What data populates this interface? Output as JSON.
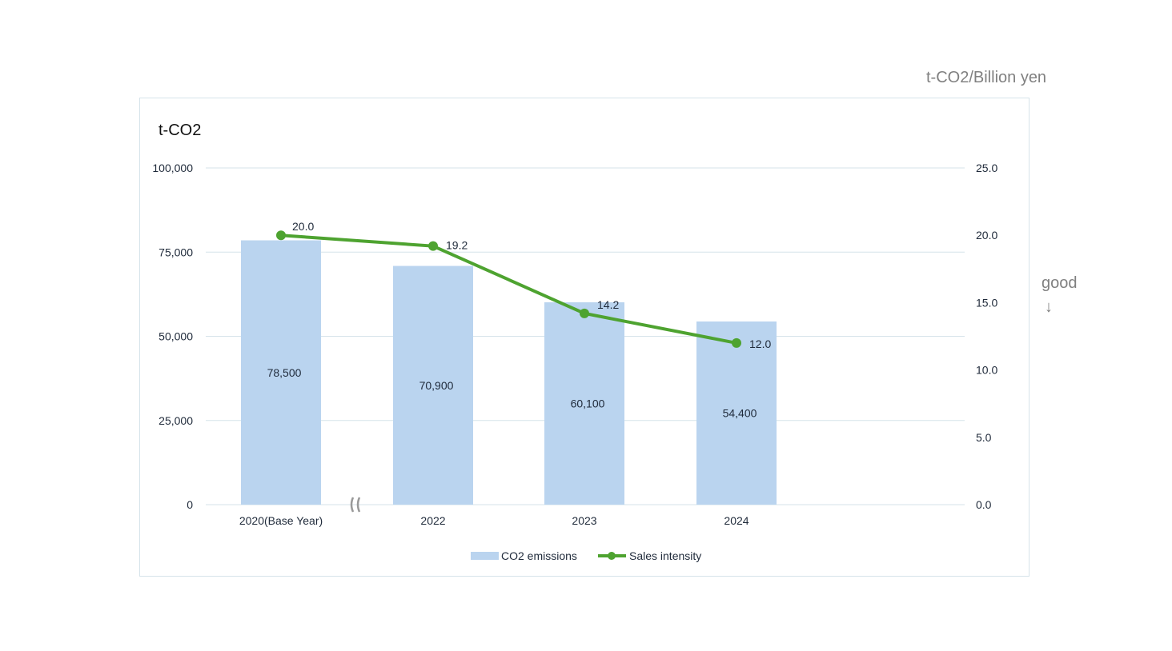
{
  "chart_data": {
    "type": "bar+line",
    "categories": [
      "2020(Base Year)",
      "2022",
      "2023",
      "2024"
    ],
    "series": [
      {
        "name": "CO2 emissions",
        "type": "bar",
        "axis": "left",
        "values": [
          78500,
          70900,
          60100,
          54400
        ],
        "labels": [
          "78,500",
          "70,900",
          "60,100",
          "54,400"
        ],
        "color": "#bad4ef"
      },
      {
        "name": "Sales intensity",
        "type": "line",
        "axis": "right",
        "values": [
          20.0,
          19.2,
          14.2,
          12.0
        ],
        "labels": [
          "20.0",
          "19.2",
          "14.2",
          "12.0"
        ],
        "color": "#4ea330"
      }
    ],
    "ylabel": "t-CO2",
    "y2label": "t-CO2/Billion yen",
    "ylim": [
      0,
      100000
    ],
    "y2lim": [
      0,
      25
    ],
    "yticks": [
      0,
      25000,
      50000,
      75000,
      100000
    ],
    "ytick_labels": [
      "0",
      "25,000",
      "50,000",
      "75,000",
      "100,000"
    ],
    "y2ticks": [
      0,
      5,
      10,
      15,
      20,
      25
    ],
    "y2tick_labels": [
      "0.0",
      "5.0",
      "10.0",
      "15.0",
      "20.0",
      "25.0"
    ],
    "grid": true,
    "legend": "bottom",
    "annotation": "good",
    "annotation_arrow": "↓"
  }
}
